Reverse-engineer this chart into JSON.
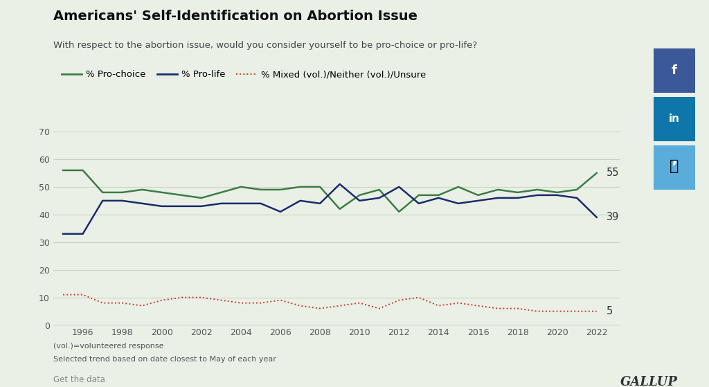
{
  "title": "Americans' Self-Identification on Abortion Issue",
  "subtitle": "With respect to the abortion issue, would you consider yourself to be pro-choice or pro-life?",
  "bg_color": "#eaf0e6",
  "plot_bg_color": "#eaf0e6",
  "grid_color": "#c8d4c0",
  "years": [
    1995,
    1996,
    1997,
    1998,
    1999,
    2000,
    2001,
    2002,
    2003,
    2004,
    2005,
    2006,
    2007,
    2008,
    2009,
    2010,
    2011,
    2012,
    2013,
    2014,
    2015,
    2016,
    2017,
    2018,
    2019,
    2020,
    2021,
    2022
  ],
  "pro_choice": [
    56,
    56,
    48,
    48,
    49,
    48,
    47,
    46,
    48,
    50,
    49,
    49,
    50,
    50,
    42,
    47,
    49,
    41,
    47,
    47,
    50,
    47,
    49,
    48,
    49,
    48,
    49,
    55
  ],
  "pro_life": [
    33,
    33,
    45,
    45,
    44,
    43,
    43,
    43,
    44,
    44,
    44,
    41,
    45,
    44,
    51,
    45,
    46,
    50,
    44,
    46,
    44,
    45,
    46,
    46,
    47,
    47,
    46,
    39
  ],
  "mixed": [
    11,
    11,
    8,
    8,
    7,
    9,
    10,
    10,
    9,
    8,
    8,
    9,
    7,
    6,
    7,
    8,
    6,
    9,
    10,
    7,
    8,
    7,
    6,
    6,
    5,
    5,
    5,
    5
  ],
  "pro_choice_color": "#3a7d44",
  "pro_life_color": "#1b2a6b",
  "mixed_color": "#c0392b",
  "end_label_pro_choice": "55",
  "end_label_pro_life": "39",
  "end_label_mixed": "5",
  "footnote1": "(vol.)=volunteered response",
  "footnote2": "Selected trend based on date closest to May of each year",
  "source": "Get the data",
  "brand": "GALLUP",
  "legend_items": [
    "% Pro-choice",
    "% Pro-life",
    "% Mixed (vol.)/Neither (vol.)/Unsure"
  ],
  "ylim": [
    0,
    70
  ],
  "yticks": [
    0,
    10,
    20,
    30,
    40,
    50,
    60,
    70
  ],
  "xlim": [
    1994.5,
    2023.2
  ],
  "xticks": [
    1996,
    1998,
    2000,
    2002,
    2004,
    2006,
    2008,
    2010,
    2012,
    2014,
    2016,
    2018,
    2020,
    2022
  ],
  "fb_color": "#3b5998",
  "li_color": "#0e76a8",
  "tw_color": "#5aadda"
}
